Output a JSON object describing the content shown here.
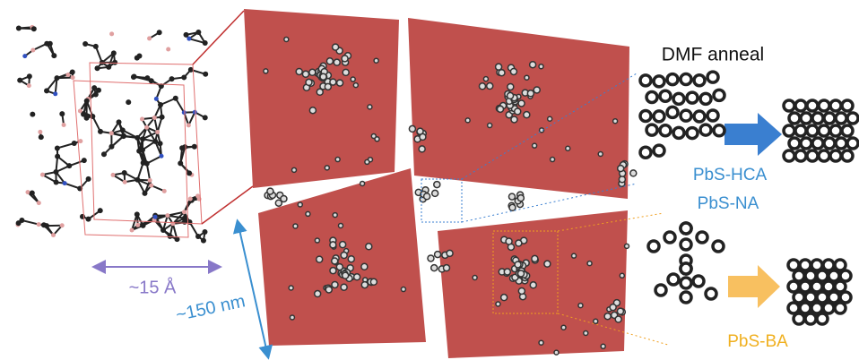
{
  "annotations": {
    "process": "DMF anneal",
    "ligand_hca": "PbS-HCA",
    "ligand_na": "PbS-NA",
    "ligand_ba": "PbS-BA",
    "molecule_size": "~15 Å",
    "panel_size": "~150 nm"
  }
}
